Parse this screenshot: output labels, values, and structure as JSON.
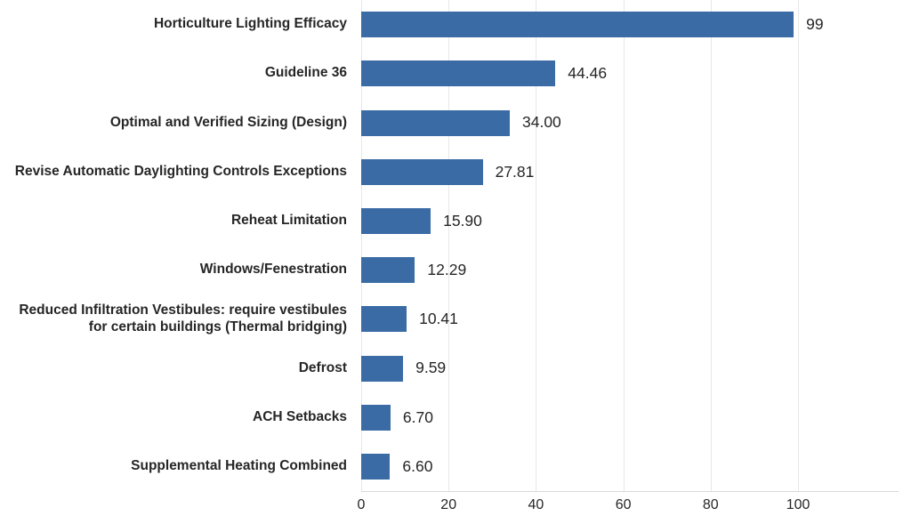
{
  "chart_data": {
    "type": "bar",
    "orientation": "horizontal",
    "title": "",
    "xlabel": "",
    "ylabel": "",
    "categories": [
      "Horticulture Lighting Efficacy",
      "Guideline 36",
      "Optimal and Verified Sizing (Design)",
      "Revise Automatic Daylighting Controls Exceptions",
      "Reheat Limitation",
      "Windows/Fenestration",
      "Reduced Infiltration Vestibules: require vestibules for certain buildings (Thermal bridging)",
      "Defrost",
      "ACH Setbacks",
      "Supplemental Heating Combined"
    ],
    "values": [
      99,
      44.46,
      34.0,
      27.81,
      15.9,
      12.29,
      10.41,
      9.59,
      6.7,
      6.6
    ],
    "value_labels": [
      "99",
      "44.46",
      "34.00",
      "27.81",
      "15.90",
      "12.29",
      "10.41",
      "9.59",
      "6.70",
      "6.60"
    ],
    "x_ticks": [
      0,
      20,
      40,
      60,
      80,
      100
    ],
    "x_tick_labels": [
      "0",
      "20",
      "40",
      "60",
      "80",
      "100"
    ],
    "xlim": [
      0,
      123
    ],
    "grid": true,
    "legend": false,
    "colors": {
      "bar": "#3a6ba5",
      "gridline": "#e8e8e8",
      "axis_line": "#d9d9d9",
      "text": "#262626",
      "background": "#ffffff"
    }
  }
}
